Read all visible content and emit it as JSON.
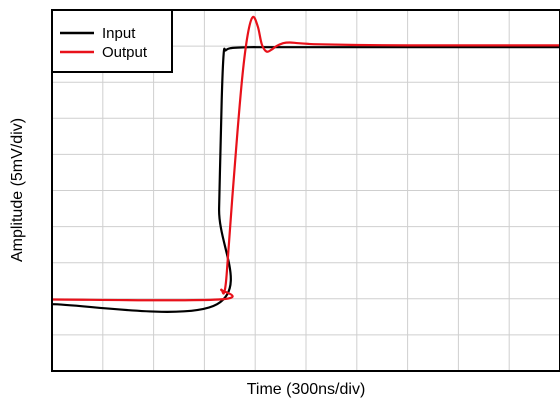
{
  "chart_data": {
    "type": "line",
    "title": "",
    "xlabel": "Time (300ns/div)",
    "ylabel": "Amplitude (5mV/div)",
    "xlim": [
      0,
      10
    ],
    "ylim": [
      0,
      10
    ],
    "grid": true,
    "grid_divisions": {
      "x": 10,
      "y": 10
    },
    "legend": "top-left",
    "series": [
      {
        "name": "Input",
        "color": "#000000",
        "x": [
          0,
          3.25,
          3.29,
          3.34,
          3.38,
          3.42,
          3.5,
          3.7,
          3.9,
          4.2,
          5,
          6,
          7,
          8,
          9,
          10
        ],
        "y": [
          1.85,
          1.85,
          4.5,
          7.5,
          8.8,
          8.88,
          8.94,
          8.96,
          8.97,
          8.97,
          8.97,
          8.97,
          8.97,
          8.97,
          8.97,
          8.97
        ]
      },
      {
        "name": "Output",
        "color": "#e8111a",
        "x": [
          0,
          3.28,
          3.33,
          3.38,
          3.42,
          3.46,
          3.55,
          3.65,
          3.75,
          3.85,
          3.95,
          4.05,
          4.13,
          4.22,
          4.32,
          4.42,
          4.55,
          4.68,
          4.85,
          5.05,
          5.3,
          6,
          7,
          8,
          9,
          10
        ],
        "y": [
          1.98,
          1.98,
          2.25,
          2.15,
          2.4,
          3.1,
          4.8,
          6.6,
          8.2,
          9.3,
          9.8,
          9.55,
          9.05,
          8.85,
          8.9,
          9.0,
          9.08,
          9.1,
          9.08,
          9.06,
          9.05,
          9.03,
          9.02,
          9.02,
          9.02,
          9.02
        ]
      }
    ]
  }
}
